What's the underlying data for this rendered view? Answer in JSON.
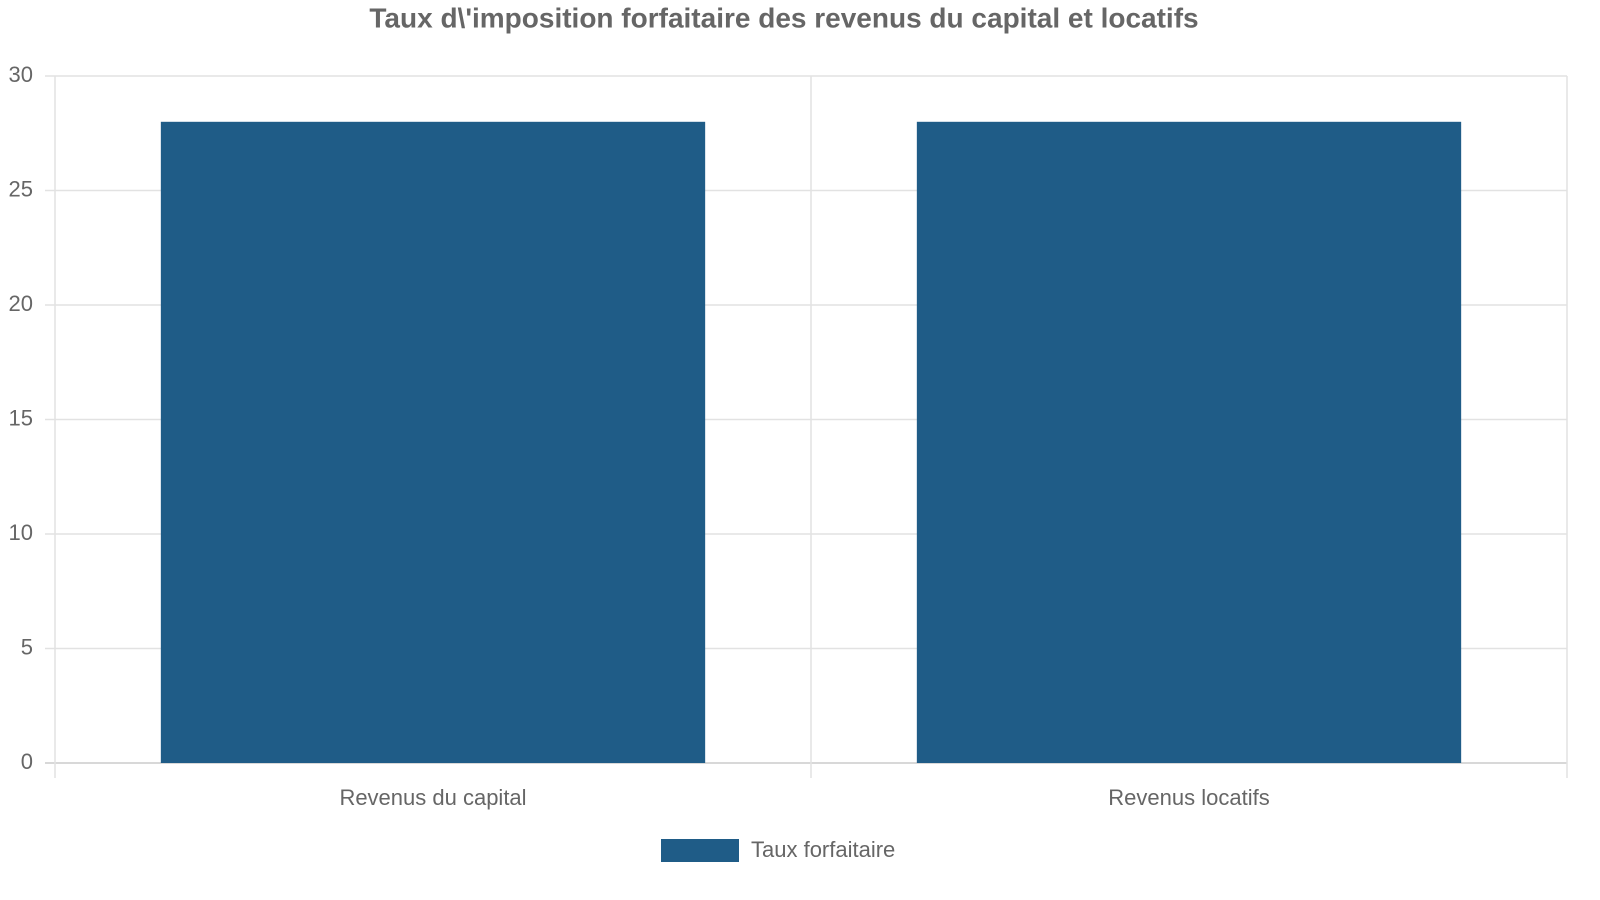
{
  "chart_data": {
    "type": "bar",
    "title": "Taux d\\'imposition forfaitaire des revenus du capital et locatifs",
    "categories": [
      "Revenus du capital",
      "Revenus locatifs"
    ],
    "series": [
      {
        "name": "Taux forfaitaire",
        "color": "#1f5c87",
        "values": [
          28,
          28
        ]
      }
    ],
    "ylim": [
      0,
      30
    ],
    "yticks": [
      0,
      5,
      10,
      15,
      20,
      25,
      30
    ],
    "grid": true,
    "legend": "bottom"
  }
}
